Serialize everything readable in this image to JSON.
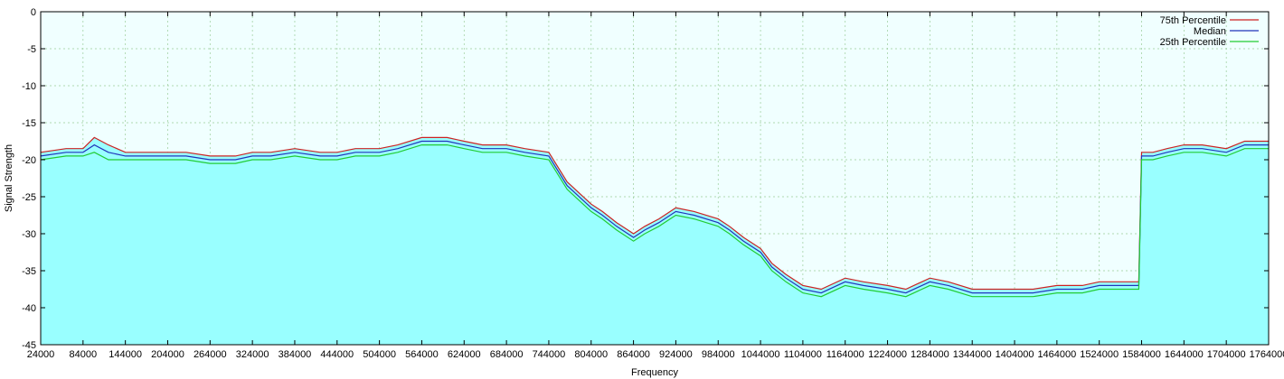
{
  "chart_data": {
    "type": "area",
    "title": "",
    "xlabel": "Frequency",
    "ylabel": "Signal Strength",
    "xlim": [
      24000,
      1764000
    ],
    "ylim": [
      -45,
      0
    ],
    "grid": true,
    "legend_position": "top-right",
    "x_ticks": [
      24000,
      84000,
      144000,
      204000,
      264000,
      324000,
      384000,
      444000,
      504000,
      564000,
      624000,
      684000,
      744000,
      804000,
      864000,
      924000,
      984000,
      1044000,
      1104000,
      1164000,
      1224000,
      1284000,
      1344000,
      1404000,
      1464000,
      1524000,
      1584000,
      1644000,
      1704000,
      1764000
    ],
    "y_ticks": [
      0,
      -5,
      -10,
      -15,
      -20,
      -25,
      -30,
      -35,
      -40,
      -45
    ],
    "colors": {
      "fill": "#99ffff",
      "background": "#f0ffff",
      "grid": "#99cc99",
      "p75": "#cc2222",
      "median": "#2233bb",
      "p25": "#22cc33"
    },
    "series": [
      {
        "name": "75th Percentile",
        "color": "#cc2222",
        "x": [
          24000,
          60000,
          84000,
          100000,
          120000,
          144000,
          170000,
          204000,
          230000,
          264000,
          300000,
          324000,
          350000,
          384000,
          420000,
          444000,
          470000,
          504000,
          530000,
          564000,
          600000,
          624000,
          650000,
          684000,
          710000,
          744000,
          770000,
          804000,
          820000,
          840000,
          864000,
          880000,
          900000,
          924000,
          950000,
          984000,
          1000000,
          1020000,
          1044000,
          1060000,
          1080000,
          1104000,
          1130000,
          1164000,
          1190000,
          1224000,
          1250000,
          1284000,
          1310000,
          1344000,
          1370000,
          1404000,
          1430000,
          1464000,
          1500000,
          1524000,
          1560000,
          1580000,
          1584000,
          1600000,
          1620000,
          1644000,
          1670000,
          1704000,
          1730000,
          1764000
        ],
        "y": [
          -19,
          -18.5,
          -18.5,
          -17,
          -18,
          -19,
          -19,
          -19,
          -19,
          -19.5,
          -19.5,
          -19,
          -19,
          -18.5,
          -19,
          -19,
          -18.5,
          -18.5,
          -18,
          -17,
          -17,
          -17.5,
          -18,
          -18,
          -18.5,
          -19,
          -23,
          -26,
          -27,
          -28.5,
          -30,
          -29,
          -28,
          -26.5,
          -27,
          -28,
          -29,
          -30.5,
          -32,
          -34,
          -35.5,
          -37,
          -37.5,
          -36,
          -36.5,
          -37,
          -37.5,
          -36,
          -36.5,
          -37.5,
          -37.5,
          -37.5,
          -37.5,
          -37,
          -37,
          -36.5,
          -36.5,
          -36.5,
          -19,
          -19,
          -18.5,
          -18,
          -18,
          -18.5,
          -17.5,
          -17.5
        ]
      },
      {
        "name": "Median",
        "color": "#2233bb",
        "x": [
          24000,
          60000,
          84000,
          100000,
          120000,
          144000,
          170000,
          204000,
          230000,
          264000,
          300000,
          324000,
          350000,
          384000,
          420000,
          444000,
          470000,
          504000,
          530000,
          564000,
          600000,
          624000,
          650000,
          684000,
          710000,
          744000,
          770000,
          804000,
          820000,
          840000,
          864000,
          880000,
          900000,
          924000,
          950000,
          984000,
          1000000,
          1020000,
          1044000,
          1060000,
          1080000,
          1104000,
          1130000,
          1164000,
          1190000,
          1224000,
          1250000,
          1284000,
          1310000,
          1344000,
          1370000,
          1404000,
          1430000,
          1464000,
          1500000,
          1524000,
          1560000,
          1580000,
          1584000,
          1600000,
          1620000,
          1644000,
          1670000,
          1704000,
          1730000,
          1764000
        ],
        "y": [
          -19.5,
          -19,
          -19,
          -18,
          -19,
          -19.5,
          -19.5,
          -19.5,
          -19.5,
          -20,
          -20,
          -19.5,
          -19.5,
          -19,
          -19.5,
          -19.5,
          -19,
          -19,
          -18.5,
          -17.5,
          -17.5,
          -18,
          -18.5,
          -18.5,
          -19,
          -19.5,
          -23.5,
          -26.5,
          -27.5,
          -29,
          -30.5,
          -29.5,
          -28.5,
          -27,
          -27.5,
          -28.5,
          -29.5,
          -31,
          -32.5,
          -34.5,
          -36,
          -37.5,
          -38,
          -36.5,
          -37,
          -37.5,
          -38,
          -36.5,
          -37,
          -38,
          -38,
          -38,
          -38,
          -37.5,
          -37.5,
          -37,
          -37,
          -37,
          -19.5,
          -19.5,
          -19,
          -18.5,
          -18.5,
          -19,
          -18,
          -18
        ]
      },
      {
        "name": "25th Percentile",
        "color": "#22cc33",
        "x": [
          24000,
          60000,
          84000,
          100000,
          120000,
          144000,
          170000,
          204000,
          230000,
          264000,
          300000,
          324000,
          350000,
          384000,
          420000,
          444000,
          470000,
          504000,
          530000,
          564000,
          600000,
          624000,
          650000,
          684000,
          710000,
          744000,
          770000,
          804000,
          820000,
          840000,
          864000,
          880000,
          900000,
          924000,
          950000,
          984000,
          1000000,
          1020000,
          1044000,
          1060000,
          1080000,
          1104000,
          1130000,
          1164000,
          1190000,
          1224000,
          1250000,
          1284000,
          1310000,
          1344000,
          1370000,
          1404000,
          1430000,
          1464000,
          1500000,
          1524000,
          1560000,
          1580000,
          1584000,
          1600000,
          1620000,
          1644000,
          1670000,
          1704000,
          1730000,
          1764000
        ],
        "y": [
          -20,
          -19.5,
          -19.5,
          -19,
          -20,
          -20,
          -20,
          -20,
          -20,
          -20.5,
          -20.5,
          -20,
          -20,
          -19.5,
          -20,
          -20,
          -19.5,
          -19.5,
          -19,
          -18,
          -18,
          -18.5,
          -19,
          -19,
          -19.5,
          -20,
          -24,
          -27,
          -28,
          -29.5,
          -31,
          -30,
          -29,
          -27.5,
          -28,
          -29,
          -30,
          -31.5,
          -33,
          -35,
          -36.5,
          -38,
          -38.5,
          -37,
          -37.5,
          -38,
          -38.5,
          -37,
          -37.5,
          -38.5,
          -38.5,
          -38.5,
          -38.5,
          -38,
          -38,
          -37.5,
          -37.5,
          -37.5,
          -20,
          -20,
          -19.5,
          -19,
          -19,
          -19.5,
          -18.5,
          -18.5
        ]
      }
    ]
  }
}
